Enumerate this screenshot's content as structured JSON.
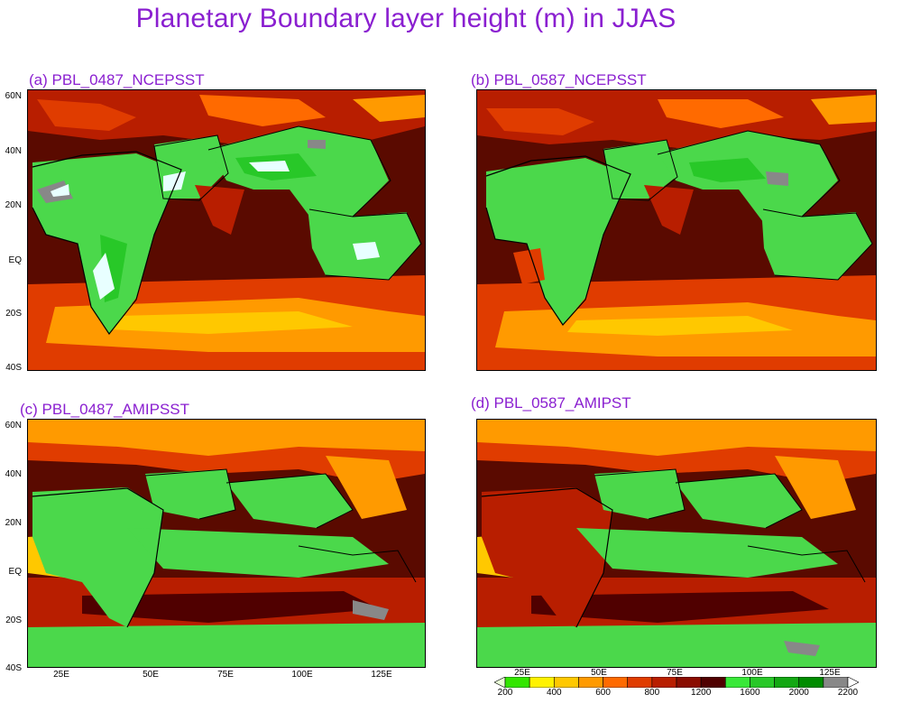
{
  "title": "Planetary Boundary layer height (m) in JJAS",
  "panels": [
    {
      "id": "a",
      "label": "(a)  PBL_0487_NCEPSST"
    },
    {
      "id": "b",
      "label": "(b) PBL_0587_NCEPSST"
    },
    {
      "id": "c",
      "label": "(c) PBL_0487_AMIPSST"
    },
    {
      "id": "d",
      "label": "(d) PBL_0587_AMIPST"
    }
  ],
  "lat_ticks": [
    "60N",
    "40N",
    "20N",
    "EQ",
    "20S",
    "40S"
  ],
  "lon_ticks": [
    "25E",
    "50E",
    "75E",
    "100E",
    "125E"
  ],
  "colorbar": {
    "labels": [
      "200",
      "400",
      "600",
      "800",
      "1200",
      "1600",
      "2000",
      "2200"
    ],
    "colors": [
      "#eaffd8",
      "#33e600",
      "#fff200",
      "#ffc800",
      "#ff9a00",
      "#ff6a00",
      "#e03c00",
      "#b81e00",
      "#8a0c00",
      "#500000",
      "#38e838",
      "#28c828",
      "#13a813",
      "#008c00",
      "#888888",
      "#ffffff"
    ]
  },
  "colors": {
    "title": "#8a1fd0",
    "ocean": "#5a0a00",
    "land": "#4bd84b"
  }
}
